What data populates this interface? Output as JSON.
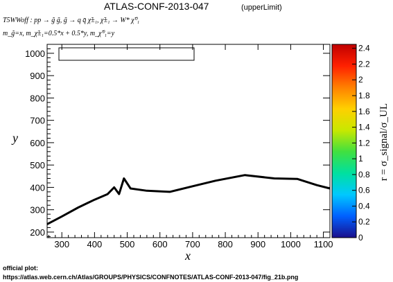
{
  "header": {
    "title": "ATLAS-CONF-2013-047",
    "subtitle": "(upperLimit)",
    "process": "T5WWoff : pp → g̃ g̃, g̃ → q q̄ χ̃±₁, χ̃±₁ → W* χ̃⁰₁",
    "mass_relation": "m_g̃=x, m_χ̃±₁=0.5*x + 0.5*y, m_χ̃⁰₁=y"
  },
  "footer": {
    "label": "official plot:",
    "url": "https://atlas.web.cern.ch/Atlas/GROUPS/PHYSICS/CONFNOTES/ATLAS-CONF-2013-047/fig_21b.png"
  },
  "colors": {
    "curve": "#000000",
    "axes": "#000000",
    "palette": [
      "#1a0f8c",
      "#0060ff",
      "#00c8ff",
      "#00e0a0",
      "#40e040",
      "#c8e800",
      "#ffd000",
      "#ff8000",
      "#ff2000",
      "#c00000"
    ]
  },
  "chart_data": {
    "type": "line",
    "title": "ATLAS-CONF-2013-047",
    "xlabel": "x",
    "ylabel": "y",
    "xlim": [
      255,
      1120
    ],
    "ylim": [
      175,
      1040
    ],
    "x_ticks": [
      300,
      400,
      500,
      600,
      700,
      800,
      900,
      1000,
      1100
    ],
    "y_ticks": [
      200,
      300,
      400,
      500,
      600,
      700,
      800,
      900,
      1000
    ],
    "legend_placement": "top-left (empty box)",
    "series": [
      {
        "x": [
          255,
          300,
          350,
          400,
          440,
          460,
          475,
          490,
          510,
          560,
          630,
          700,
          770,
          860,
          950,
          1020,
          1080,
          1120
        ],
        "y": [
          235,
          270,
          310,
          345,
          370,
          400,
          370,
          440,
          395,
          385,
          380,
          405,
          430,
          455,
          440,
          438,
          410,
          395
        ]
      }
    ],
    "colorbar": {
      "label": "r = σ_signal/σ_UL",
      "range": [
        0,
        2.45
      ],
      "ticks": [
        0,
        0.2,
        0.4,
        0.6,
        0.8,
        1,
        1.2,
        1.4,
        1.6,
        1.8,
        2,
        2.2,
        2.4
      ]
    }
  }
}
